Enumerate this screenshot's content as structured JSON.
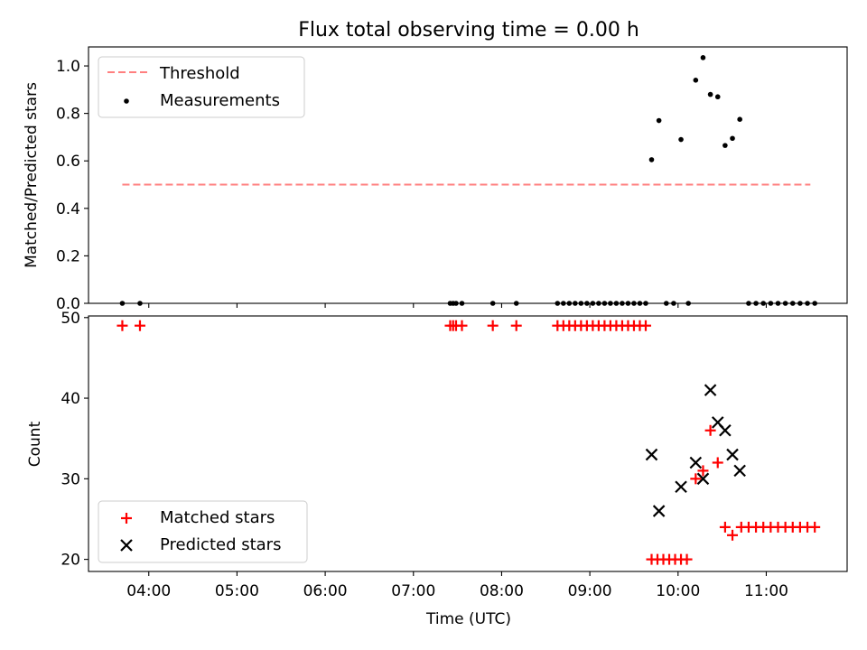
{
  "title": "Flux total observing time = 0.00 h",
  "chart_data": [
    {
      "type": "scatter",
      "ylabel": "Matched/Predicted stars",
      "xlabel": "",
      "xlim": [
        "03:19",
        "11:55"
      ],
      "ylim": [
        0,
        1.08
      ],
      "yticks": [
        {
          "value": 0.0,
          "label": "0.0"
        },
        {
          "value": 0.2,
          "label": "0.2"
        },
        {
          "value": 0.4,
          "label": "0.4"
        },
        {
          "value": 0.6,
          "label": "0.6"
        },
        {
          "value": 0.8,
          "label": "0.8"
        },
        {
          "value": 1.0,
          "label": "1.0"
        }
      ],
      "legend_position": "top-left",
      "threshold": {
        "name": "Threshold",
        "y": 0.5,
        "x_start": "03:42",
        "x_end": "11:30",
        "color": "#ff7f7f"
      },
      "series": [
        {
          "name": "Measurements",
          "color": "#000000",
          "marker": "dot",
          "points": [
            {
              "x": "03:42",
              "y": 0
            },
            {
              "x": "03:54",
              "y": 0
            },
            {
              "x": "07:25",
              "y": 0
            },
            {
              "x": "07:27",
              "y": 0
            },
            {
              "x": "07:29",
              "y": 0
            },
            {
              "x": "07:33",
              "y": 0
            },
            {
              "x": "07:54",
              "y": 0
            },
            {
              "x": "08:10",
              "y": 0
            },
            {
              "x": "08:38",
              "y": 0
            },
            {
              "x": "08:42",
              "y": 0
            },
            {
              "x": "08:46",
              "y": 0
            },
            {
              "x": "08:50",
              "y": 0
            },
            {
              "x": "08:54",
              "y": 0
            },
            {
              "x": "08:58",
              "y": 0
            },
            {
              "x": "09:02",
              "y": 0
            },
            {
              "x": "09:06",
              "y": 0
            },
            {
              "x": "09:10",
              "y": 0
            },
            {
              "x": "09:14",
              "y": 0
            },
            {
              "x": "09:18",
              "y": 0
            },
            {
              "x": "09:22",
              "y": 0
            },
            {
              "x": "09:26",
              "y": 0
            },
            {
              "x": "09:30",
              "y": 0
            },
            {
              "x": "09:34",
              "y": 0
            },
            {
              "x": "09:38",
              "y": 0
            },
            {
              "x": "09:42",
              "y": 0.605
            },
            {
              "x": "09:47",
              "y": 0.77
            },
            {
              "x": "09:52",
              "y": 0
            },
            {
              "x": "09:57",
              "y": 0
            },
            {
              "x": "10:02",
              "y": 0.69
            },
            {
              "x": "10:07",
              "y": 0
            },
            {
              "x": "10:12",
              "y": 0.94
            },
            {
              "x": "10:17",
              "y": 1.035
            },
            {
              "x": "10:22",
              "y": 0.88
            },
            {
              "x": "10:27",
              "y": 0.87
            },
            {
              "x": "10:32",
              "y": 0.665
            },
            {
              "x": "10:37",
              "y": 0.695
            },
            {
              "x": "10:42",
              "y": 0.775
            },
            {
              "x": "10:48",
              "y": 0
            },
            {
              "x": "10:53",
              "y": 0
            },
            {
              "x": "10:58",
              "y": 0
            },
            {
              "x": "11:03",
              "y": 0
            },
            {
              "x": "11:08",
              "y": 0
            },
            {
              "x": "11:13",
              "y": 0
            },
            {
              "x": "11:18",
              "y": 0
            },
            {
              "x": "11:23",
              "y": 0
            },
            {
              "x": "11:28",
              "y": 0
            },
            {
              "x": "11:33",
              "y": 0
            }
          ]
        }
      ]
    },
    {
      "type": "scatter",
      "ylabel": "Count",
      "xlabel": "Time (UTC)",
      "xlim": [
        "03:19",
        "11:55"
      ],
      "ylim": [
        18.5,
        50.2
      ],
      "yticks": [
        {
          "value": 20,
          "label": "20"
        },
        {
          "value": 30,
          "label": "30"
        },
        {
          "value": 40,
          "label": "40"
        },
        {
          "value": 50,
          "label": "50"
        }
      ],
      "xticks": [
        "04:00",
        "05:00",
        "06:00",
        "07:00",
        "08:00",
        "09:00",
        "10:00",
        "11:00"
      ],
      "legend_position": "bottom-left",
      "series": [
        {
          "name": "Matched stars",
          "color": "#ff0000",
          "marker": "plus",
          "points": [
            {
              "x": "03:42",
              "y": 49
            },
            {
              "x": "03:54",
              "y": 49
            },
            {
              "x": "07:25",
              "y": 49
            },
            {
              "x": "07:27",
              "y": 49
            },
            {
              "x": "07:29",
              "y": 49
            },
            {
              "x": "07:33",
              "y": 49
            },
            {
              "x": "07:54",
              "y": 49
            },
            {
              "x": "08:10",
              "y": 49
            },
            {
              "x": "08:38",
              "y": 49
            },
            {
              "x": "08:42",
              "y": 49
            },
            {
              "x": "08:46",
              "y": 49
            },
            {
              "x": "08:50",
              "y": 49
            },
            {
              "x": "08:54",
              "y": 49
            },
            {
              "x": "08:58",
              "y": 49
            },
            {
              "x": "09:02",
              "y": 49
            },
            {
              "x": "09:06",
              "y": 49
            },
            {
              "x": "09:10",
              "y": 49
            },
            {
              "x": "09:14",
              "y": 49
            },
            {
              "x": "09:18",
              "y": 49
            },
            {
              "x": "09:22",
              "y": 49
            },
            {
              "x": "09:26",
              "y": 49
            },
            {
              "x": "09:30",
              "y": 49
            },
            {
              "x": "09:34",
              "y": 49
            },
            {
              "x": "09:38",
              "y": 49
            },
            {
              "x": "09:42",
              "y": 20
            },
            {
              "x": "09:46",
              "y": 20
            },
            {
              "x": "09:50",
              "y": 20
            },
            {
              "x": "09:54",
              "y": 20
            },
            {
              "x": "09:58",
              "y": 20
            },
            {
              "x": "10:02",
              "y": 20
            },
            {
              "x": "10:06",
              "y": 20
            },
            {
              "x": "10:12",
              "y": 30
            },
            {
              "x": "10:17",
              "y": 31
            },
            {
              "x": "10:22",
              "y": 36
            },
            {
              "x": "10:27",
              "y": 32
            },
            {
              "x": "10:32",
              "y": 24
            },
            {
              "x": "10:37",
              "y": 23
            },
            {
              "x": "10:43",
              "y": 24
            },
            {
              "x": "10:48",
              "y": 24
            },
            {
              "x": "10:53",
              "y": 24
            },
            {
              "x": "10:58",
              "y": 24
            },
            {
              "x": "11:03",
              "y": 24
            },
            {
              "x": "11:08",
              "y": 24
            },
            {
              "x": "11:13",
              "y": 24
            },
            {
              "x": "11:18",
              "y": 24
            },
            {
              "x": "11:23",
              "y": 24
            },
            {
              "x": "11:28",
              "y": 24
            },
            {
              "x": "11:33",
              "y": 24
            }
          ]
        },
        {
          "name": "Predicted stars",
          "color": "#000000",
          "marker": "x",
          "points": [
            {
              "x": "09:42",
              "y": 33
            },
            {
              "x": "09:47",
              "y": 26
            },
            {
              "x": "10:02",
              "y": 29
            },
            {
              "x": "10:12",
              "y": 32
            },
            {
              "x": "10:17",
              "y": 30
            },
            {
              "x": "10:22",
              "y": 41
            },
            {
              "x": "10:27",
              "y": 37
            },
            {
              "x": "10:32",
              "y": 36
            },
            {
              "x": "10:37",
              "y": 33
            },
            {
              "x": "10:42",
              "y": 31
            }
          ]
        }
      ]
    }
  ]
}
